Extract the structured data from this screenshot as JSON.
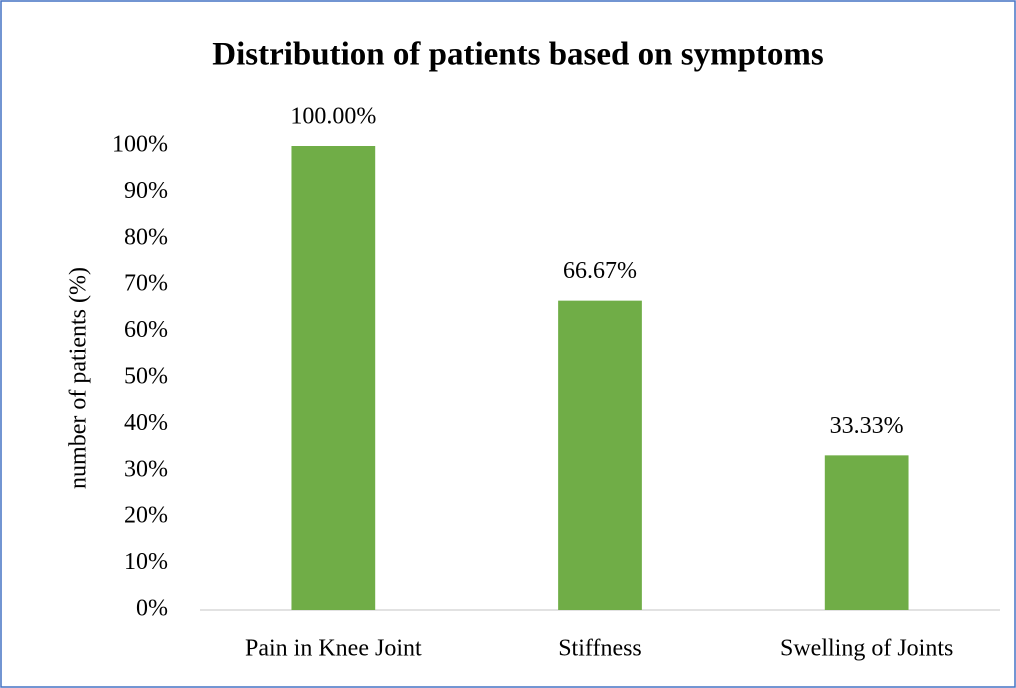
{
  "chart_data": {
    "type": "bar",
    "title": "Distribution of patients based on symptoms",
    "y_label": "number of patients (%)",
    "categories": [
      "Pain in Knee Joint",
      "Stiffness",
      "Swelling of Joints"
    ],
    "values": [
      100,
      66.67,
      33.33
    ],
    "value_labels": [
      "100.00%",
      "66.67%",
      "33.33%"
    ],
    "color": "#70ad47",
    "ylim": [
      0,
      100
    ],
    "yticks": [
      {
        "value": 0,
        "label": "0%"
      },
      {
        "value": 10,
        "label": "10%"
      },
      {
        "value": 20,
        "label": "20%"
      },
      {
        "value": 30,
        "label": "30%"
      },
      {
        "value": 40,
        "label": "40%"
      },
      {
        "value": 50,
        "label": "50%"
      },
      {
        "value": 60,
        "label": "60%"
      },
      {
        "value": 70,
        "label": "70%"
      },
      {
        "value": 80,
        "label": "80%"
      },
      {
        "value": 90,
        "label": "90%"
      },
      {
        "value": 100,
        "label": "100%"
      }
    ],
    "grid": false
  }
}
